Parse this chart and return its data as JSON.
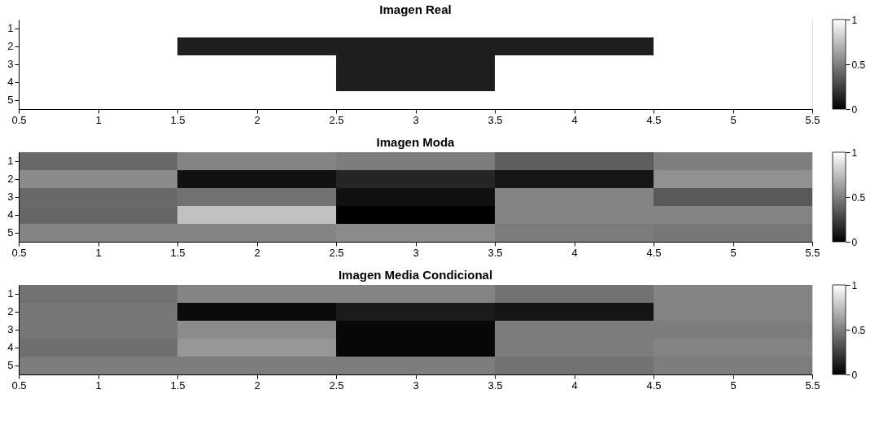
{
  "chart_data": [
    {
      "type": "heatmap",
      "title": "Imagen Real",
      "x": [
        1,
        2,
        3,
        4,
        5
      ],
      "xlim": [
        0.5,
        5.5
      ],
      "xticks": [
        0.5,
        1,
        1.5,
        2,
        2.5,
        3,
        3.5,
        4,
        4.5,
        5,
        5.5
      ],
      "y_categories": [
        "1",
        "2",
        "3",
        "4",
        "5"
      ],
      "cells": [
        [
          1,
          1,
          1,
          1,
          1
        ],
        [
          1,
          0.12,
          0.12,
          0.12,
          1
        ],
        [
          1,
          1,
          0.12,
          1,
          1
        ],
        [
          1,
          1,
          0.12,
          1,
          1
        ],
        [
          1,
          1,
          1,
          1,
          1
        ]
      ],
      "clim": [
        0,
        1
      ],
      "cticks": [
        0,
        0.5,
        1
      ],
      "grid": false
    },
    {
      "type": "heatmap",
      "title": "Imagen Moda",
      "x": [
        1,
        2,
        3,
        4,
        5
      ],
      "xlim": [
        0.5,
        5.5
      ],
      "xticks": [
        0.5,
        1,
        1.5,
        2,
        2.5,
        3,
        3.5,
        4,
        4.5,
        5,
        5.5
      ],
      "y_categories": [
        "1",
        "2",
        "3",
        "4",
        "5"
      ],
      "cells": [
        [
          0.45,
          0.55,
          0.52,
          0.4,
          0.53
        ],
        [
          0.58,
          0.05,
          0.15,
          0.07,
          0.6
        ],
        [
          0.45,
          0.48,
          0.05,
          0.55,
          0.38
        ],
        [
          0.43,
          0.78,
          0.0,
          0.55,
          0.55
        ],
        [
          0.55,
          0.55,
          0.58,
          0.52,
          0.5
        ]
      ],
      "clim": [
        0,
        1
      ],
      "cticks": [
        0,
        0.5,
        1
      ],
      "grid": false
    },
    {
      "type": "heatmap",
      "title": "Imagen Media Condicional",
      "x": [
        1,
        2,
        3,
        4,
        5
      ],
      "xlim": [
        0.5,
        5.5
      ],
      "xticks": [
        0.5,
        1,
        1.5,
        2,
        2.5,
        3,
        3.5,
        4,
        4.5,
        5,
        5.5
      ],
      "y_categories": [
        "1",
        "2",
        "3",
        "4",
        "5"
      ],
      "cells": [
        [
          0.48,
          0.55,
          0.55,
          0.48,
          0.55
        ],
        [
          0.5,
          0.03,
          0.1,
          0.07,
          0.55
        ],
        [
          0.5,
          0.58,
          0.02,
          0.52,
          0.52
        ],
        [
          0.47,
          0.62,
          0.02,
          0.52,
          0.55
        ],
        [
          0.52,
          0.52,
          0.52,
          0.48,
          0.52
        ]
      ],
      "clim": [
        0,
        1
      ],
      "cticks": [
        0,
        0.5,
        1
      ],
      "grid": false
    }
  ]
}
